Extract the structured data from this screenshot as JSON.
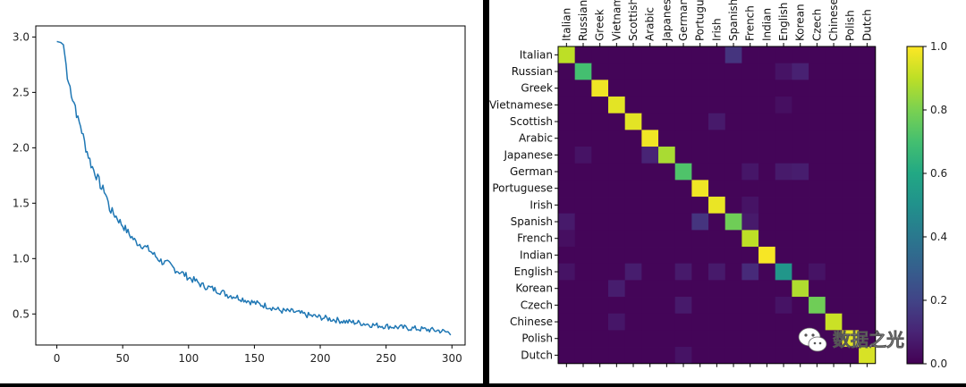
{
  "chart_data": [
    {
      "type": "line",
      "title": "",
      "xlabel": "",
      "ylabel": "",
      "xlim": [
        -16,
        310
      ],
      "ylim": [
        0.22,
        3.1
      ],
      "xticks": [
        0,
        50,
        100,
        150,
        200,
        250,
        300
      ],
      "yticks": [
        0.5,
        1.0,
        1.5,
        2.0,
        2.5,
        3.0
      ],
      "xtick_labels": [
        "0",
        "50",
        "100",
        "150",
        "200",
        "250",
        "300"
      ],
      "ytick_labels": [
        "0.5",
        "1.0",
        "1.5",
        "2.0",
        "2.5",
        "3.0"
      ],
      "color": "#1f77b4",
      "grid": false,
      "series": [
        {
          "x": [
            0,
            3,
            5,
            7,
            8,
            10,
            12,
            14,
            16,
            18,
            20,
            22,
            24,
            26,
            28,
            30,
            32,
            34,
            36,
            38,
            40,
            45,
            50,
            55,
            60,
            65,
            70,
            75,
            80,
            85,
            90,
            95,
            100,
            105,
            110,
            115,
            120,
            125,
            130,
            135,
            140,
            145,
            150,
            160,
            170,
            180,
            190,
            200,
            210,
            220,
            230,
            240,
            250,
            260,
            270,
            280,
            290,
            299
          ],
          "y": [
            2.96,
            2.95,
            2.93,
            2.75,
            2.62,
            2.55,
            2.45,
            2.38,
            2.25,
            2.2,
            2.1,
            2.0,
            1.93,
            1.85,
            1.8,
            1.75,
            1.7,
            1.63,
            1.62,
            1.55,
            1.45,
            1.38,
            1.3,
            1.22,
            1.15,
            1.12,
            1.08,
            1.02,
            0.97,
            0.95,
            0.9,
            0.87,
            0.83,
            0.8,
            0.76,
            0.74,
            0.72,
            0.7,
            0.67,
            0.66,
            0.64,
            0.62,
            0.6,
            0.57,
            0.53,
            0.52,
            0.49,
            0.47,
            0.45,
            0.43,
            0.42,
            0.4,
            0.39,
            0.38,
            0.37,
            0.36,
            0.35,
            0.33
          ]
        }
      ]
    },
    {
      "type": "heatmap",
      "title": "",
      "categories": [
        "Italian",
        "Russian",
        "Greek",
        "Vietnamese",
        "Scottish",
        "Arabic",
        "Japanese",
        "German",
        "Portuguese",
        "Irish",
        "Spanish",
        "French",
        "Indian",
        "English",
        "Korean",
        "Czech",
        "Chinese",
        "Polish",
        "Dutch"
      ],
      "x_tick_labels": [
        "Italian",
        "Russian",
        "Greek",
        "Vietnam",
        "Scottish",
        "Arabic",
        "Japanese",
        "German",
        "Portugu",
        "Irish",
        "Spanish",
        "French",
        "Indian",
        "English",
        "Korean",
        "Czech",
        "Chinese",
        "Polish",
        "Dutch"
      ],
      "diagonal": [
        0.9,
        0.7,
        0.98,
        0.96,
        0.96,
        0.98,
        0.87,
        0.72,
        0.98,
        0.97,
        0.78,
        0.9,
        0.99,
        0.52,
        0.88,
        0.78,
        0.92,
        0.96,
        0.94
      ],
      "off_diagonal": [
        {
          "row": 0,
          "col": 10,
          "value": 0.15
        },
        {
          "row": 1,
          "col": 14,
          "value": 0.09
        },
        {
          "row": 1,
          "col": 13,
          "value": 0.05
        },
        {
          "row": 3,
          "col": 13,
          "value": 0.04
        },
        {
          "row": 4,
          "col": 9,
          "value": 0.07
        },
        {
          "row": 6,
          "col": 5,
          "value": 0.1
        },
        {
          "row": 6,
          "col": 1,
          "value": 0.05
        },
        {
          "row": 7,
          "col": 11,
          "value": 0.06
        },
        {
          "row": 7,
          "col": 13,
          "value": 0.07
        },
        {
          "row": 7,
          "col": 14,
          "value": 0.08
        },
        {
          "row": 9,
          "col": 11,
          "value": 0.05
        },
        {
          "row": 10,
          "col": 0,
          "value": 0.07
        },
        {
          "row": 10,
          "col": 8,
          "value": 0.15
        },
        {
          "row": 10,
          "col": 11,
          "value": 0.07
        },
        {
          "row": 11,
          "col": 0,
          "value": 0.04
        },
        {
          "row": 13,
          "col": 0,
          "value": 0.05
        },
        {
          "row": 13,
          "col": 4,
          "value": 0.08
        },
        {
          "row": 13,
          "col": 7,
          "value": 0.07
        },
        {
          "row": 13,
          "col": 9,
          "value": 0.07
        },
        {
          "row": 13,
          "col": 11,
          "value": 0.12
        },
        {
          "row": 13,
          "col": 15,
          "value": 0.05
        },
        {
          "row": 14,
          "col": 3,
          "value": 0.08
        },
        {
          "row": 15,
          "col": 7,
          "value": 0.07
        },
        {
          "row": 15,
          "col": 13,
          "value": 0.05
        },
        {
          "row": 16,
          "col": 3,
          "value": 0.06
        },
        {
          "row": 18,
          "col": 7,
          "value": 0.05
        }
      ],
      "colorbar": {
        "range": [
          0.0,
          1.0
        ],
        "ticks": [
          0.0,
          0.2,
          0.4,
          0.6,
          0.8,
          1.0
        ],
        "tick_labels": [
          "0.0",
          "0.2",
          "0.4",
          "0.6",
          "0.8",
          "1.0"
        ],
        "colormap": "viridis"
      }
    }
  ],
  "watermark": {
    "text": "数据之光",
    "icon": "wechat-icon"
  }
}
